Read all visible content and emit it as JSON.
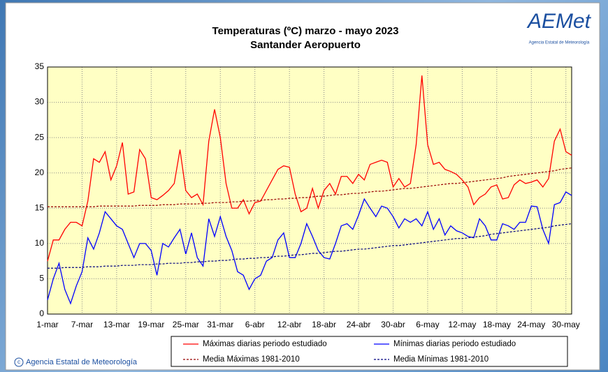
{
  "chart_data": {
    "type": "line",
    "title": "Temperaturas (ºC) marzo - mayo 2023",
    "subtitle": "Santander Aeropuerto",
    "logo": "AEMet",
    "logo_caption": "Agencia Estatal de Meteorología",
    "footer": "Agencia Estatal de Meteorología",
    "categories": [
      "1-mar",
      null,
      null,
      null,
      null,
      null,
      "7-mar",
      null,
      null,
      null,
      null,
      null,
      "13-mar",
      null,
      null,
      null,
      null,
      null,
      "19-mar",
      null,
      null,
      null,
      null,
      null,
      "25-mar",
      null,
      null,
      null,
      null,
      null,
      "31-mar",
      null,
      null,
      null,
      null,
      null,
      "6-abr",
      null,
      null,
      null,
      null,
      null,
      "12-abr",
      null,
      null,
      null,
      null,
      null,
      "18-abr",
      null,
      null,
      null,
      null,
      null,
      "24-abr",
      null,
      null,
      null,
      null,
      null,
      "30-abr",
      null,
      null,
      null,
      null,
      null,
      "6-may",
      null,
      null,
      null,
      null,
      null,
      "12-may",
      null,
      null,
      null,
      null,
      null,
      "18-may",
      null,
      null,
      null,
      null,
      null,
      "24-may",
      null,
      null,
      null,
      null,
      null,
      "30-may",
      null
    ],
    "series": [
      {
        "name": "Máximas diarias periodo estudiado",
        "color": "#ff0000",
        "dashed": false,
        "values": [
          7.5,
          10.5,
          10.5,
          12,
          13,
          13,
          12.5,
          16,
          22,
          21.5,
          23,
          19,
          21,
          24.3,
          17,
          17.3,
          23.3,
          22,
          16.5,
          16.2,
          16.8,
          17.5,
          18.5,
          23.3,
          17.5,
          16.5,
          17,
          15.5,
          24.5,
          29,
          25,
          18.5,
          15,
          15,
          16.2,
          14.2,
          15.8,
          16,
          17.5,
          19,
          20.5,
          21,
          20.8,
          17,
          14.5,
          15,
          17.8,
          15,
          17.5,
          18.5,
          17,
          19.5,
          19.5,
          18.5,
          19.8,
          19,
          21.2,
          21.5,
          21.8,
          21.5,
          18,
          19.2,
          18,
          18.5,
          24,
          33.8,
          24,
          21.2,
          21.5,
          20.5,
          20.2,
          19.8,
          19,
          18,
          15.5,
          16.5,
          17,
          18,
          18.3,
          16.3,
          16.5,
          18.3,
          19,
          18.5,
          18.7,
          19,
          18,
          19.2,
          24.5,
          26.2,
          23,
          22.5
        ]
      },
      {
        "name": "Mínimas diarias periodo estudiado",
        "color": "#0000ff",
        "dashed": false,
        "values": [
          2,
          5,
          7.2,
          3.5,
          1.5,
          4,
          6,
          10.8,
          9.2,
          11.5,
          14.5,
          13.5,
          12.5,
          12,
          10,
          8,
          10,
          10,
          9,
          5.5,
          10,
          9.5,
          10.8,
          12,
          8.5,
          11.5,
          8,
          6.8,
          13.5,
          11,
          13.8,
          11,
          9,
          6,
          5.5,
          3.5,
          5,
          5.5,
          7.5,
          8,
          10.5,
          11.5,
          8,
          8,
          10,
          12.8,
          11,
          9,
          8,
          7.8,
          10,
          12.5,
          12.8,
          12,
          14,
          16.3,
          15,
          13.8,
          15.3,
          15,
          13.8,
          12.2,
          13.5,
          13,
          13.5,
          12.5,
          14.5,
          12,
          13.5,
          11.2,
          12.5,
          11.8,
          11.5,
          11,
          10.8,
          13.5,
          12.5,
          10.5,
          10.5,
          12.8,
          12.5,
          12,
          13,
          13,
          15.3,
          15.2,
          12,
          10,
          15.5,
          15.8,
          17.3,
          16.8
        ]
      },
      {
        "name": "Media Máximas 1981-2010",
        "color": "#990000",
        "dashed": true,
        "values": [
          15.2,
          15.2,
          15.2,
          15.2,
          15.2,
          15.2,
          15.2,
          15.2,
          15.2,
          15.3,
          15.3,
          15.3,
          15.3,
          15.3,
          15.3,
          15.3,
          15.4,
          15.4,
          15.4,
          15.4,
          15.5,
          15.5,
          15.5,
          15.6,
          15.6,
          15.6,
          15.6,
          15.7,
          15.7,
          15.8,
          15.8,
          15.8,
          15.9,
          15.9,
          16.0,
          16.0,
          16.1,
          16.1,
          16.2,
          16.2,
          16.3,
          16.3,
          16.4,
          16.4,
          16.5,
          16.5,
          16.6,
          16.7,
          16.7,
          16.8,
          16.9,
          16.9,
          17.0,
          17.1,
          17.1,
          17.2,
          17.3,
          17.4,
          17.4,
          17.5,
          17.6,
          17.7,
          17.8,
          17.8,
          17.9,
          18.0,
          18.1,
          18.2,
          18.3,
          18.4,
          18.5,
          18.5,
          18.6,
          18.7,
          18.8,
          18.9,
          19.0,
          19.1,
          19.2,
          19.3,
          19.5,
          19.6,
          19.7,
          19.8,
          19.9,
          20.0,
          20.1,
          20.2,
          20.3,
          20.5,
          20.6,
          20.7
        ]
      },
      {
        "name": "Media Mínimas 1981-2010",
        "color": "#000080",
        "dashed": true,
        "values": [
          6.5,
          6.5,
          6.5,
          6.6,
          6.6,
          6.6,
          6.6,
          6.7,
          6.7,
          6.7,
          6.8,
          6.8,
          6.8,
          6.9,
          6.9,
          6.9,
          7.0,
          7.0,
          7.0,
          7.1,
          7.1,
          7.2,
          7.2,
          7.2,
          7.3,
          7.3,
          7.4,
          7.4,
          7.5,
          7.5,
          7.6,
          7.6,
          7.7,
          7.8,
          7.8,
          7.9,
          7.9,
          8.0,
          8.0,
          8.1,
          8.2,
          8.2,
          8.3,
          8.4,
          8.4,
          8.5,
          8.6,
          8.6,
          8.7,
          8.8,
          8.9,
          8.9,
          9.0,
          9.1,
          9.2,
          9.2,
          9.3,
          9.4,
          9.5,
          9.6,
          9.7,
          9.7,
          9.8,
          9.9,
          10.0,
          10.1,
          10.2,
          10.3,
          10.4,
          10.5,
          10.6,
          10.7,
          10.7,
          10.8,
          10.9,
          11.0,
          11.1,
          11.3,
          11.4,
          11.5,
          11.6,
          11.7,
          11.8,
          11.9,
          12.0,
          12.1,
          12.2,
          12.3,
          12.5,
          12.6,
          12.7,
          12.8
        ]
      }
    ],
    "ylim": [
      0,
      35
    ],
    "yticks": [
      0,
      5,
      10,
      15,
      20,
      25,
      30,
      35
    ],
    "grid": true,
    "plot_background": "#ffffc4"
  }
}
